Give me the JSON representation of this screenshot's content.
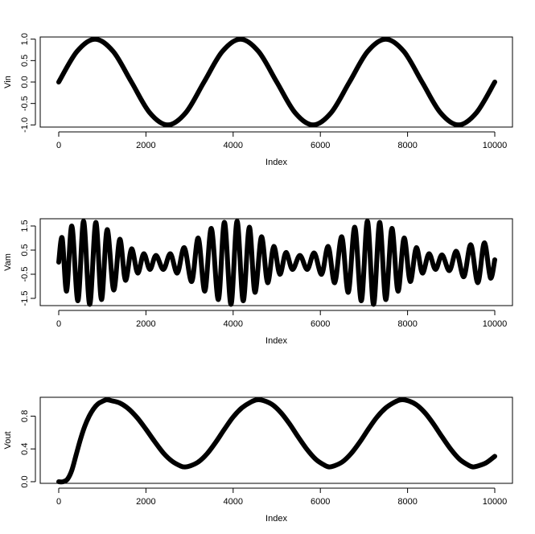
{
  "chart_data": [
    {
      "type": "line",
      "title": "",
      "xlabel": "Index",
      "ylabel": "Vin",
      "xlim": [
        0,
        10000
      ],
      "ylim": [
        -1.05,
        1.05
      ],
      "x_ticks": [
        "0",
        "2000",
        "4000",
        "6000",
        "8000",
        "10000"
      ],
      "y_ticks": [
        "-1.0",
        "-0.5",
        "0.0",
        "0.5",
        "1.0"
      ],
      "series": [
        {
          "x": [
            0,
            417,
            833,
            1250,
            1667,
            2083,
            2500,
            2917,
            3333,
            3750,
            4167,
            4583,
            5000,
            5417,
            5833,
            6250,
            6667,
            7083,
            7500,
            7917,
            8333,
            8750,
            9167,
            9583,
            10000
          ],
          "values": [
            0,
            0.71,
            1,
            0.71,
            0,
            -0.71,
            -1,
            -0.71,
            0,
            0.71,
            1,
            0.71,
            0,
            -0.71,
            -1,
            -0.71,
            0,
            0.71,
            1,
            0.71,
            0,
            -0.71,
            -1,
            -0.71,
            0
          ]
        }
      ]
    },
    {
      "type": "line",
      "title": "",
      "xlabel": "Index",
      "ylabel": "Vam",
      "xlim": [
        0,
        10000
      ],
      "ylim": [
        -1.8,
        1.8
      ],
      "x_ticks": [
        "0",
        "2000",
        "4000",
        "6000",
        "8000",
        "10000"
      ],
      "y_ticks": [
        "-1.5",
        "-0.5",
        "0.5",
        "1.5"
      ],
      "series": [
        {
          "x": [
            0,
            80,
            180,
            300,
            440,
            570,
            710,
            850,
            980,
            1110,
            1260,
            1400,
            1530,
            1670,
            1810,
            1950,
            2090,
            2230,
            2400,
            2560,
            2720,
            2880,
            3050,
            3200,
            3350,
            3500,
            3660,
            3800,
            3950,
            4090,
            4230,
            4370,
            4500,
            4650,
            4790,
            4930,
            5070,
            5210,
            5360,
            5530,
            5700,
            5860,
            6030,
            6180,
            6330,
            6490,
            6640,
            6790,
            6940,
            7080,
            7220,
            7360,
            7500,
            7640,
            7780,
            7920,
            8060,
            8200,
            8340,
            8490,
            8640,
            8790,
            8960,
            9120,
            9290,
            9450,
            9610,
            9760,
            9900,
            10000
          ],
          "values": [
            0,
            1.0,
            -1.2,
            1.5,
            -1.6,
            1.7,
            -1.75,
            1.65,
            -1.55,
            1.35,
            -1.15,
            0.95,
            -0.75,
            0.55,
            -0.45,
            0.35,
            -0.3,
            0.28,
            -0.3,
            0.35,
            -0.45,
            0.6,
            -0.8,
            1.0,
            -1.2,
            1.4,
            -1.55,
            1.65,
            -1.75,
            1.7,
            -1.6,
            1.45,
            -1.25,
            1.05,
            -0.85,
            0.65,
            -0.5,
            0.4,
            -0.3,
            0.28,
            -0.3,
            0.38,
            -0.5,
            0.65,
            -0.85,
            1.05,
            -1.25,
            1.45,
            -1.6,
            1.7,
            -1.75,
            1.65,
            -1.55,
            1.4,
            -1.2,
            1.0,
            -0.8,
            0.6,
            -0.45,
            0.35,
            -0.3,
            0.3,
            -0.35,
            0.45,
            -0.6,
            0.72,
            -0.85,
            0.8,
            -0.65,
            0.1
          ]
        }
      ]
    },
    {
      "type": "line",
      "title": "",
      "xlabel": "Index",
      "ylabel": "Vout",
      "xlim": [
        0,
        10000
      ],
      "ylim": [
        -0.02,
        1.03
      ],
      "x_ticks": [
        "0",
        "2000",
        "4000",
        "6000",
        "8000",
        "10000"
      ],
      "y_ticks": [
        "0.0",
        "0.4",
        "0.8"
      ],
      "series": [
        {
          "x": [
            0,
            100,
            200,
            300,
            400,
            500,
            600,
            700,
            800,
            900,
            1000,
            1100,
            1200,
            1400,
            1600,
            1800,
            2000,
            2200,
            2400,
            2600,
            2800,
            2900,
            3000,
            3200,
            3400,
            3600,
            3800,
            4000,
            4200,
            4400,
            4550,
            4700,
            4900,
            5100,
            5300,
            5500,
            5700,
            5900,
            6100,
            6200,
            6300,
            6500,
            6700,
            6900,
            7100,
            7300,
            7500,
            7700,
            7850,
            8000,
            8200,
            8400,
            8600,
            8800,
            9000,
            9200,
            9400,
            9500,
            9600,
            9800,
            10000
          ],
          "values": [
            0,
            0.0,
            0.03,
            0.14,
            0.33,
            0.52,
            0.68,
            0.8,
            0.89,
            0.95,
            0.98,
            1.0,
            0.99,
            0.96,
            0.89,
            0.78,
            0.64,
            0.49,
            0.35,
            0.25,
            0.19,
            0.18,
            0.19,
            0.24,
            0.34,
            0.48,
            0.64,
            0.79,
            0.9,
            0.97,
            1.0,
            0.99,
            0.94,
            0.84,
            0.7,
            0.54,
            0.39,
            0.27,
            0.2,
            0.18,
            0.19,
            0.24,
            0.34,
            0.48,
            0.64,
            0.79,
            0.9,
            0.97,
            1.0,
            0.99,
            0.94,
            0.84,
            0.7,
            0.54,
            0.39,
            0.27,
            0.2,
            0.18,
            0.19,
            0.23,
            0.31
          ]
        }
      ]
    }
  ]
}
